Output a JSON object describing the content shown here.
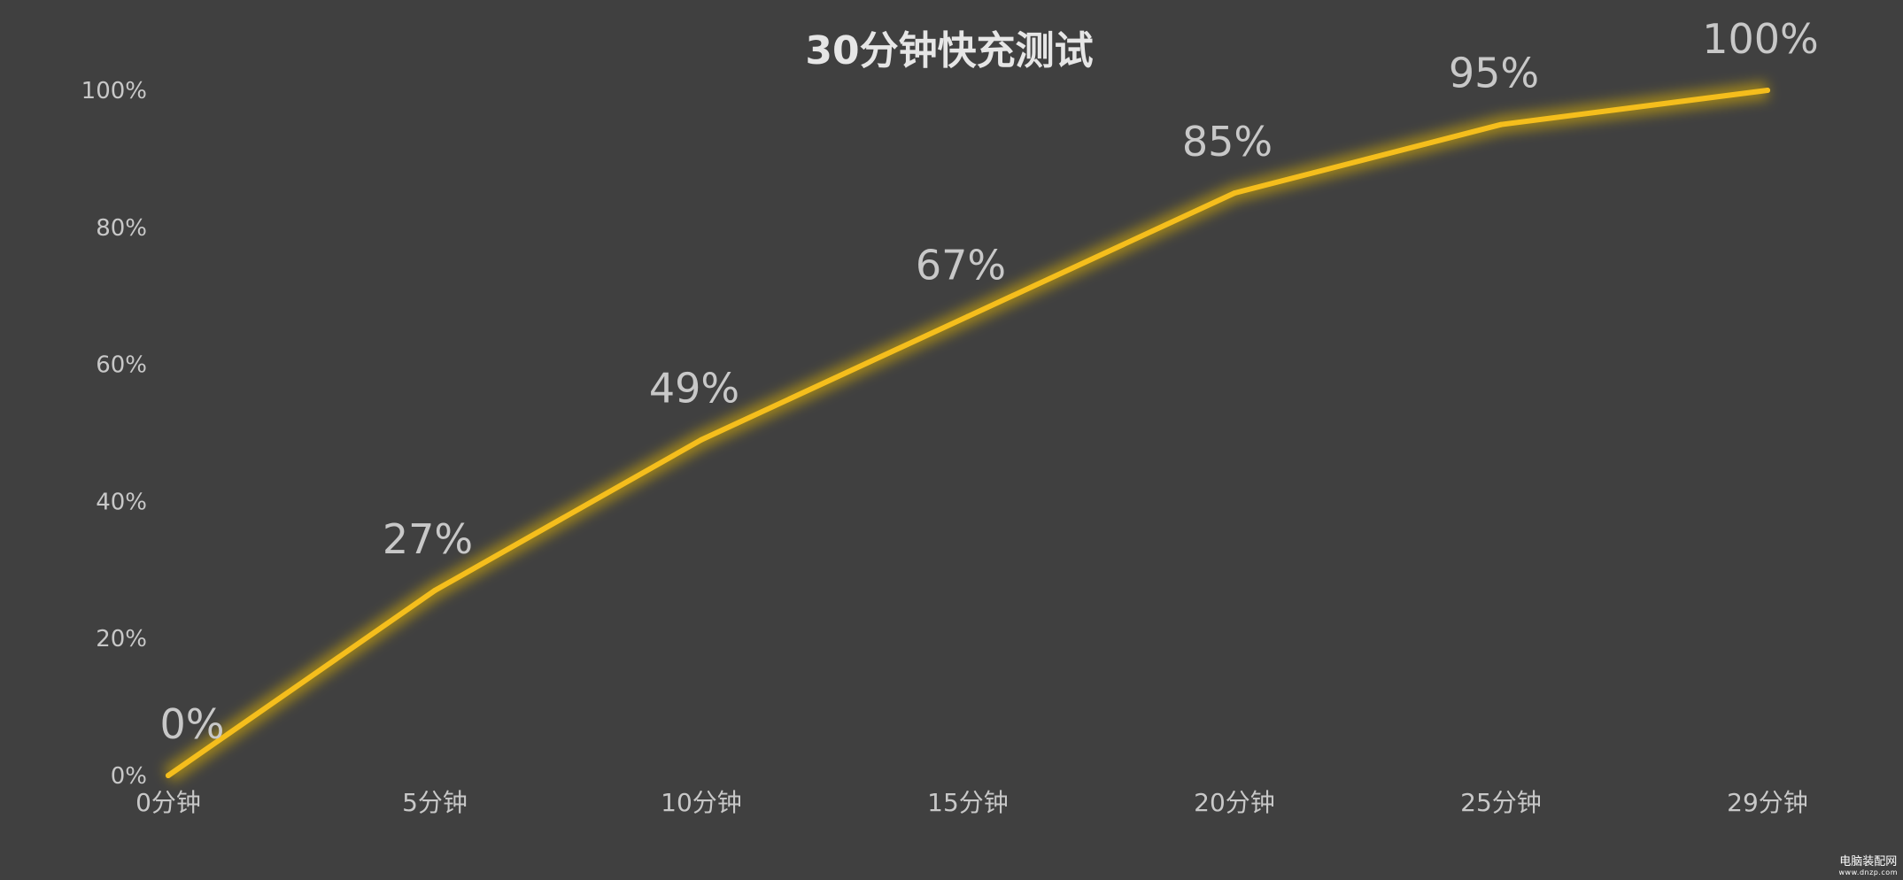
{
  "chart_data": {
    "type": "line",
    "title": "30分钟快充测试",
    "categories": [
      "0分钟",
      "5分钟",
      "10分钟",
      "15分钟",
      "20分钟",
      "25分钟",
      "29分钟"
    ],
    "series": [
      {
        "values": [
          0,
          27,
          49,
          67,
          85,
          95,
          100
        ]
      }
    ],
    "data_labels": [
      "0%",
      "27%",
      "49%",
      "67%",
      "85%",
      "95%",
      "100%"
    ],
    "y_ticks": [
      "0%",
      "20%",
      "40%",
      "60%",
      "80%",
      "100%"
    ],
    "ylim": [
      0,
      100
    ],
    "xlabel": "",
    "ylabel": "",
    "grid": false,
    "legend": "none",
    "colors": {
      "background": "#404040",
      "line": "#F5BE1C",
      "glow": "#E6B800",
      "text": "#C8C8C8",
      "title": "#E6E6E6"
    }
  },
  "watermark": {
    "main": "电脑装配网",
    "sub": "www.dnzp.com"
  }
}
